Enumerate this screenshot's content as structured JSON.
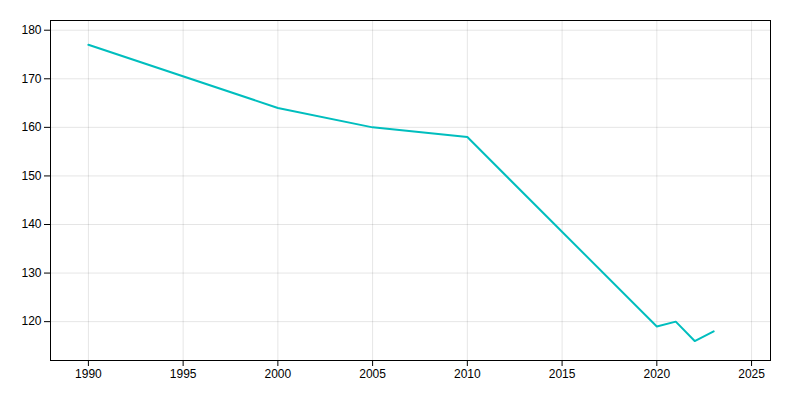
{
  "chart_data": {
    "type": "line",
    "x": [
      1990,
      2000,
      2005,
      2010,
      2020,
      2021,
      2022,
      2023
    ],
    "values": [
      177,
      164,
      160,
      158,
      119,
      120,
      116,
      118
    ],
    "color": "#00BEBE",
    "xlim": [
      1988,
      2026
    ],
    "xticks": [
      1990,
      1995,
      2000,
      2005,
      2010,
      2015,
      2020,
      2025
    ],
    "ylim": [
      112,
      182
    ],
    "yticks": [
      120,
      130,
      140,
      150,
      160,
      170,
      180
    ],
    "grid": true
  }
}
